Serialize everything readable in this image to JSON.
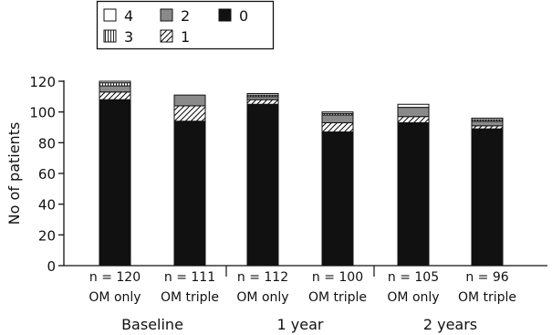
{
  "chart_data": {
    "type": "bar",
    "stacked": true,
    "ylabel": "No of patients",
    "ylim": [
      0,
      120
    ],
    "yticks": [
      0,
      20,
      40,
      60,
      80,
      100,
      120
    ],
    "categories": [
      {
        "n_label": "n = 120",
        "group_label": "OM only"
      },
      {
        "n_label": "n = 111",
        "group_label": "OM triple"
      },
      {
        "n_label": "n = 112",
        "group_label": "OM only"
      },
      {
        "n_label": "n = 100",
        "group_label": "OM triple"
      },
      {
        "n_label": "n = 105",
        "group_label": "OM only"
      },
      {
        "n_label": "n = 96",
        "group_label": "OM triple"
      }
    ],
    "periods": [
      "Baseline",
      "1 year",
      "2 years"
    ],
    "series": [
      {
        "name": "0",
        "fill": "solid-black",
        "values": [
          108,
          94,
          105,
          87,
          93,
          89
        ]
      },
      {
        "name": "1",
        "fill": "hatched",
        "values": [
          5,
          10,
          3,
          6,
          4,
          2
        ]
      },
      {
        "name": "2",
        "fill": "grey",
        "values": [
          4,
          7,
          2,
          5,
          6,
          3
        ]
      },
      {
        "name": "3",
        "fill": "vertical-lines",
        "values": [
          2,
          0,
          1,
          1,
          0,
          1
        ]
      },
      {
        "name": "4",
        "fill": "white",
        "values": [
          1,
          0,
          1,
          1,
          2,
          1
        ]
      }
    ],
    "legend": {
      "placement": "top-left",
      "entries": [
        {
          "label": "4",
          "fill": "white"
        },
        {
          "label": "2",
          "fill": "grey"
        },
        {
          "label": "0",
          "fill": "solid-black"
        },
        {
          "label": "3",
          "fill": "vertical-lines"
        },
        {
          "label": "1",
          "fill": "hatched"
        }
      ]
    },
    "colors": {
      "solid": "#111111",
      "grey": "#8a8a8a",
      "white": "#ffffff",
      "line": "#111111"
    }
  }
}
